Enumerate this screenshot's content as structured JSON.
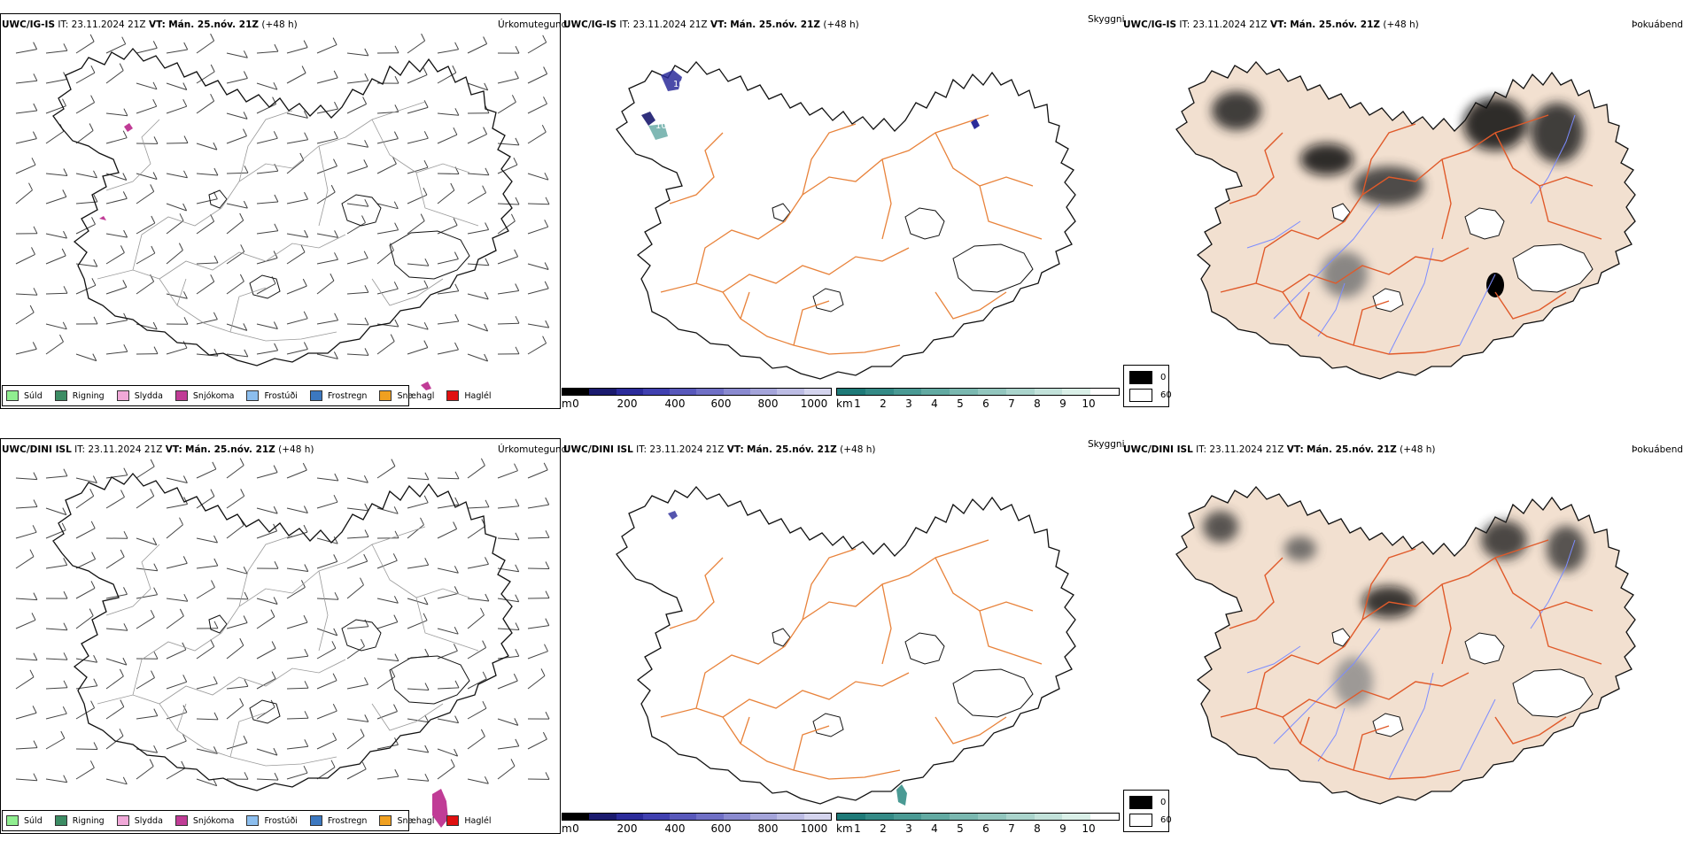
{
  "rows": [
    {
      "model": "UWC/IG-IS",
      "it_label": "IT:",
      "it": "23.11.2024 21Z",
      "vt_label": "VT:",
      "vt": "Mán. 25.nóv. 21Z",
      "lead": "(+48 h)"
    },
    {
      "model": "UWC/DINI ISL",
      "it_label": "IT:",
      "it": "23.11.2024 21Z",
      "vt_label": "VT:",
      "vt": "Mán. 25.nóv. 21Z",
      "lead": "(+48 h)"
    }
  ],
  "panel_titles": {
    "precip": "Úrkomutegund",
    "visibility": "Skyggni",
    "fog": "Þokuábendi"
  },
  "precip_legend": [
    {
      "label": "Súld",
      "color": "#90ee90"
    },
    {
      "label": "Rigning",
      "color": "#3c8c64"
    },
    {
      "label": "Slydda",
      "color": "#f0a8d8"
    },
    {
      "label": "Snjókoma",
      "color": "#c03c96"
    },
    {
      "label": "Frostúði",
      "color": "#8cbeee"
    },
    {
      "label": "Frostregn",
      "color": "#3c78c0"
    },
    {
      "label": "Snæhagl",
      "color": "#f0a020"
    },
    {
      "label": "Haglél",
      "color": "#e01010"
    }
  ],
  "cloudbase_scale": {
    "unit": "m",
    "ticks": [
      "0",
      "200",
      "400",
      "600",
      "800",
      "1000"
    ],
    "colors": [
      "#000000",
      "#1a1a6e",
      "#2b2b9a",
      "#4040b0",
      "#5858bb",
      "#7070c6",
      "#8a8ad0",
      "#a4a4da",
      "#bcbce4",
      "#d4d4ee"
    ]
  },
  "visibility_scale": {
    "unit": "km",
    "ticks": [
      "1",
      "2",
      "3",
      "4",
      "5",
      "6",
      "7",
      "8",
      "9",
      "10"
    ],
    "colors": [
      "#1e7a78",
      "#348a86",
      "#4a9a94",
      "#62aaa2",
      "#7ab8b0",
      "#92c6be",
      "#aad4cc",
      "#c2e2da",
      "#daf0e8",
      "#ffffff"
    ]
  },
  "fog_legend": {
    "high": "0",
    "low": "60",
    "high_color": "#000000",
    "low_color": "#ffffff"
  },
  "map_annotations": {
    "cloudbase_label_1": "10",
    "cloudbase_label_2": "10"
  },
  "colors": {
    "land": "#f2e0d0",
    "roads": "#e8823a",
    "roads_fog": "#e05a2a",
    "rivers": "#7c8cff",
    "coast": "#111111",
    "barbs": "#444444"
  }
}
